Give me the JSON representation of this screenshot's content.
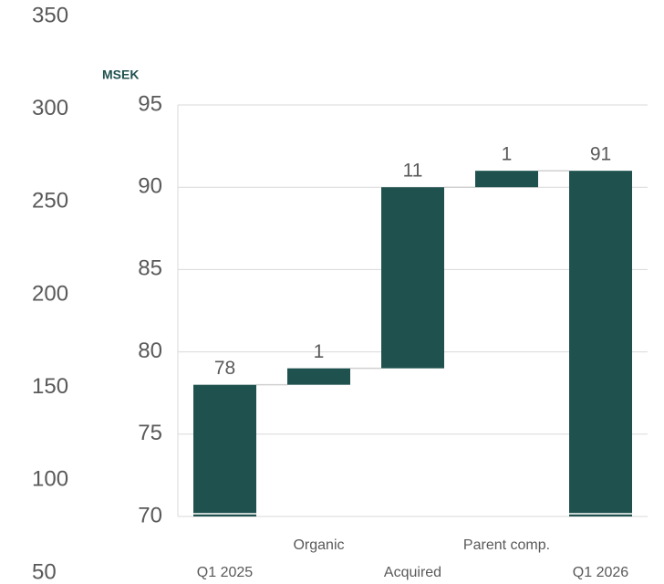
{
  "chart_data": {
    "type": "waterfall",
    "y_label": "MSEK",
    "categories": [
      "Q1 2025",
      "Organic",
      "Acquired",
      "Parent comp.",
      "Q1 2026"
    ],
    "values": [
      78,
      1,
      11,
      1,
      91
    ],
    "totals": [
      true,
      false,
      false,
      false,
      true
    ],
    "color": "#1f524e",
    "ylim": [
      70,
      95
    ],
    "yticks": [
      70,
      75,
      80,
      85,
      90,
      95
    ],
    "grid": true,
    "y2lim": [
      50,
      350
    ],
    "y2ticks": [
      50,
      100,
      150,
      200,
      250,
      300,
      350
    ]
  }
}
